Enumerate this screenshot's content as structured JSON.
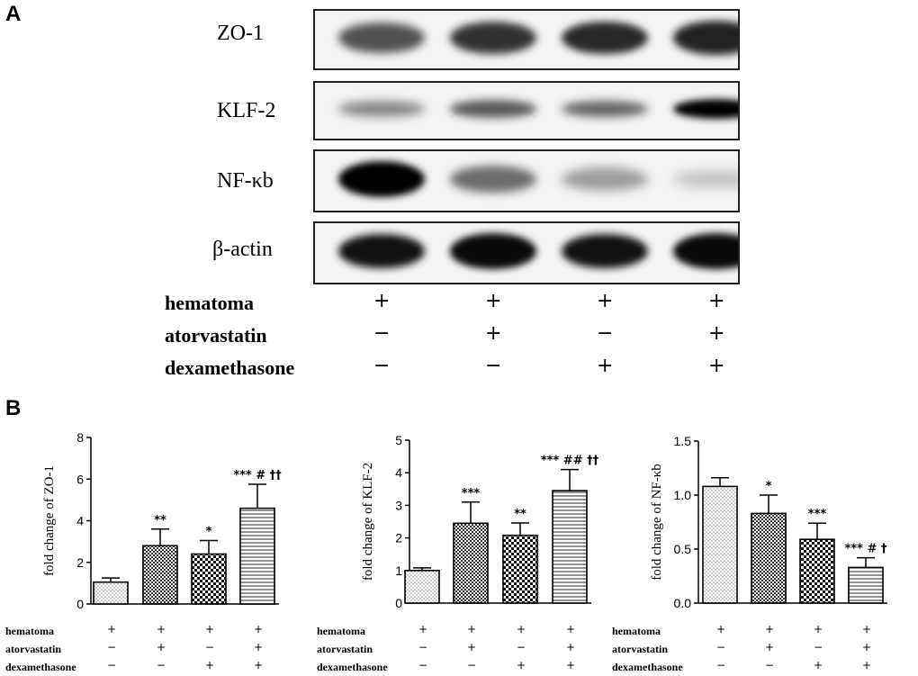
{
  "panel_a": {
    "letter": "A",
    "blots": [
      {
        "label": "ZO-1",
        "intensities": [
          0.75,
          0.85,
          0.88,
          0.9
        ]
      },
      {
        "label": "KLF-2",
        "intensities": [
          0.55,
          0.72,
          0.68,
          1.0
        ]
      },
      {
        "label": "NF-κb",
        "intensities": [
          1.0,
          0.65,
          0.45,
          0.25
        ]
      },
      {
        "label": "β-actin",
        "intensities": [
          0.95,
          0.97,
          0.95,
          0.97
        ]
      }
    ],
    "conditions": [
      {
        "label": "hematoma",
        "values": [
          "+",
          "+",
          "+",
          "+"
        ]
      },
      {
        "label": "atorvastatin",
        "values": [
          "−",
          "+",
          "−",
          "+"
        ]
      },
      {
        "label": "dexamethasone",
        "values": [
          "−",
          "−",
          "+",
          "+"
        ]
      }
    ]
  },
  "panel_b": {
    "letter": "B"
  },
  "chart_data": [
    {
      "type": "bar",
      "ylabel": "fold change of ZO-1",
      "ylim": [
        0,
        8
      ],
      "yticks": [
        "0",
        "2",
        "4",
        "6",
        "8"
      ],
      "values": [
        1.05,
        2.8,
        2.4,
        4.6
      ],
      "errors": [
        0.2,
        0.8,
        0.65,
        1.15
      ],
      "annotations": [
        "",
        "**",
        "*",
        "*** # ††"
      ],
      "conditions": [
        {
          "label": "hematoma",
          "values": [
            "+",
            "+",
            "+",
            "+"
          ]
        },
        {
          "label": "atorvastatin",
          "values": [
            "−",
            "+",
            "−",
            "+"
          ]
        },
        {
          "label": "dexamethasone",
          "values": [
            "−",
            "−",
            "+",
            "+"
          ]
        }
      ]
    },
    {
      "type": "bar",
      "ylabel": "fold change of KLF-2",
      "ylim": [
        0,
        5
      ],
      "yticks": [
        "0",
        "1",
        "2",
        "3",
        "4",
        "5"
      ],
      "values": [
        1.0,
        2.45,
        2.08,
        3.45
      ],
      "errors": [
        0.08,
        0.65,
        0.38,
        0.65
      ],
      "annotations": [
        "",
        "***",
        "**",
        "*** ## ††"
      ],
      "conditions": [
        {
          "label": "hematoma",
          "values": [
            "+",
            "+",
            "+",
            "+"
          ]
        },
        {
          "label": "atorvastatin",
          "values": [
            "−",
            "+",
            "−",
            "+"
          ]
        },
        {
          "label": "dexamethasone",
          "values": [
            "−",
            "−",
            "+",
            "+"
          ]
        }
      ]
    },
    {
      "type": "bar",
      "ylabel": "fold change of NF-κb",
      "ylim": [
        0,
        1.5
      ],
      "yticks": [
        "0.0",
        "0.5",
        "1.0",
        "1.5"
      ],
      "values": [
        1.08,
        0.83,
        0.59,
        0.33
      ],
      "errors": [
        0.08,
        0.17,
        0.15,
        0.09
      ],
      "annotations": [
        "",
        "*",
        "***",
        "*** # †"
      ],
      "conditions": [
        {
          "label": "hematoma",
          "values": [
            "+",
            "+",
            "+",
            "+"
          ]
        },
        {
          "label": "atorvastatin",
          "values": [
            "−",
            "+",
            "−",
            "+"
          ]
        },
        {
          "label": "dexamethasone",
          "values": [
            "−",
            "−",
            "+",
            "+"
          ]
        }
      ]
    }
  ]
}
